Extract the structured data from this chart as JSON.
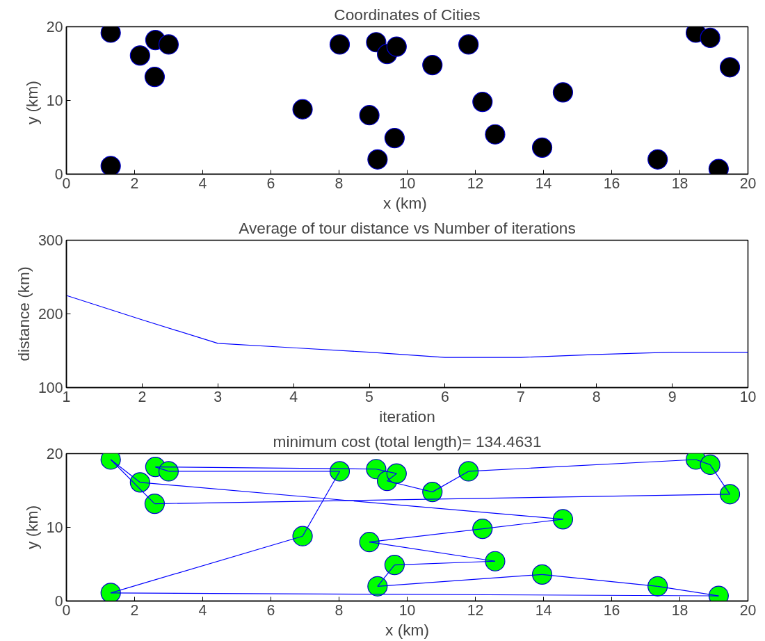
{
  "chart_data": [
    {
      "type": "scatter",
      "title": "Coordinates of Cities",
      "xlabel": "x  (km)",
      "ylabel": "y  (km)",
      "xlim": [
        0,
        20
      ],
      "ylim": [
        0,
        20
      ],
      "xticks": [
        0,
        2,
        4,
        6,
        8,
        10,
        12,
        14,
        16,
        18,
        20
      ],
      "yticks": [
        0,
        10,
        20
      ],
      "marker": "circle",
      "series": [
        {
          "color": "#000000",
          "x": [
            1.3,
            1.3,
            2.16,
            2.61,
            3.0,
            2.59,
            6.93,
            8.02,
            8.89,
            9.09,
            9.13,
            9.41,
            9.69,
            9.63,
            10.74,
            11.8,
            12.21,
            12.58,
            13.96,
            14.57,
            17.35,
            18.47,
            18.89,
            19.14,
            19.47
          ],
          "values": [
            19.2,
            1.1,
            16.1,
            18.2,
            17.6,
            13.2,
            8.8,
            17.6,
            8.0,
            17.9,
            2.0,
            16.3,
            17.3,
            4.9,
            14.8,
            17.6,
            9.8,
            5.4,
            3.6,
            11.1,
            2.0,
            19.2,
            18.5,
            0.7,
            14.5
          ]
        }
      ]
    },
    {
      "type": "line",
      "title": "Average of tour distance vs Number of iterations",
      "xlabel": "iteration",
      "ylabel": "distance (km)",
      "xlim": [
        1,
        10
      ],
      "ylim": [
        100,
        300
      ],
      "xticks": [
        1,
        2,
        3,
        4,
        5,
        6,
        7,
        8,
        9,
        10
      ],
      "yticks": [
        100,
        200,
        300
      ],
      "line_style": "solid",
      "series": [
        {
          "color": "#0000ff",
          "x": [
            1,
            2,
            3,
            4,
            5,
            6,
            7,
            8,
            9,
            10
          ],
          "values": [
            225,
            192,
            160,
            154,
            148,
            141,
            141,
            145,
            148,
            148
          ]
        }
      ]
    },
    {
      "type": "line",
      "title": "minimum cost (total length)= 134.4631",
      "xlabel": "x (km)",
      "ylabel": "y (km)",
      "xlim": [
        0,
        20
      ],
      "ylim": [
        0,
        20
      ],
      "xticks": [
        0,
        2,
        4,
        6,
        8,
        10,
        12,
        14,
        16,
        18,
        20
      ],
      "yticks": [
        0,
        10,
        20
      ],
      "line_style": "solid",
      "series": [
        {
          "type": "line",
          "marker": "none",
          "color": "#0000ff",
          "x": [
            1.3,
            6.93
          ],
          "values": [
            1.1,
            8.8
          ]
        },
        {
          "type": "line",
          "marker": "none",
          "color": "#0000ff",
          "x": [
            6.93,
            8.02
          ],
          "values": [
            8.8,
            17.6
          ]
        },
        {
          "type": "line",
          "marker": "none",
          "color": "#0000ff",
          "x": [
            3.0,
            8.02
          ],
          "values": [
            17.6,
            17.6
          ]
        },
        {
          "type": "line",
          "marker": "none",
          "color": "#0000ff",
          "x": [
            2.61,
            3.0
          ],
          "values": [
            18.2,
            17.6
          ]
        },
        {
          "type": "line",
          "marker": "none",
          "color": "#0000ff",
          "x": [
            2.61,
            9.09
          ],
          "values": [
            18.2,
            17.9
          ]
        },
        {
          "type": "line",
          "marker": "none",
          "color": "#0000ff",
          "x": [
            9.09,
            9.69
          ],
          "values": [
            17.9,
            17.3
          ]
        },
        {
          "type": "line",
          "marker": "none",
          "color": "#0000ff",
          "x": [
            9.41,
            9.69
          ],
          "values": [
            16.3,
            17.3
          ]
        },
        {
          "type": "line",
          "marker": "none",
          "color": "#0000ff",
          "x": [
            9.41,
            10.74
          ],
          "values": [
            16.3,
            14.8
          ]
        },
        {
          "type": "line",
          "marker": "none",
          "color": "#0000ff",
          "x": [
            10.74,
            11.8
          ],
          "values": [
            14.8,
            17.6
          ]
        },
        {
          "type": "line",
          "marker": "none",
          "color": "#0000ff",
          "x": [
            11.8,
            18.47
          ],
          "values": [
            17.6,
            19.2
          ]
        },
        {
          "type": "line",
          "marker": "none",
          "color": "#0000ff",
          "x": [
            18.47,
            18.89
          ],
          "values": [
            19.2,
            18.5
          ]
        },
        {
          "type": "line",
          "marker": "none",
          "color": "#0000ff",
          "x": [
            18.89,
            19.47
          ],
          "values": [
            18.5,
            14.5
          ]
        },
        {
          "type": "line",
          "marker": "none",
          "color": "#0000ff",
          "x": [
            2.59,
            19.47
          ],
          "values": [
            13.2,
            14.5
          ]
        },
        {
          "type": "line",
          "marker": "none",
          "color": "#0000ff",
          "x": [
            1.3,
            2.59
          ],
          "values": [
            19.2,
            13.2
          ]
        },
        {
          "type": "line",
          "marker": "none",
          "color": "#0000ff",
          "x": [
            1.3,
            2.16
          ],
          "values": [
            19.2,
            16.1
          ]
        },
        {
          "type": "line",
          "marker": "none",
          "color": "#0000ff",
          "x": [
            2.16,
            14.57
          ],
          "values": [
            16.1,
            11.1
          ]
        },
        {
          "type": "line",
          "marker": "none",
          "color": "#0000ff",
          "x": [
            12.21,
            14.57
          ],
          "values": [
            9.8,
            11.1
          ]
        },
        {
          "type": "line",
          "marker": "none",
          "color": "#0000ff",
          "x": [
            8.89,
            12.21
          ],
          "values": [
            8.0,
            9.8
          ]
        },
        {
          "type": "line",
          "marker": "none",
          "color": "#0000ff",
          "x": [
            8.89,
            12.58
          ],
          "values": [
            8.0,
            5.4
          ]
        },
        {
          "type": "line",
          "marker": "none",
          "color": "#0000ff",
          "x": [
            9.63,
            12.58
          ],
          "values": [
            4.9,
            5.4
          ]
        },
        {
          "type": "line",
          "marker": "none",
          "color": "#0000ff",
          "x": [
            9.13,
            9.63
          ],
          "values": [
            2.0,
            4.9
          ]
        },
        {
          "type": "line",
          "marker": "none",
          "color": "#0000ff",
          "x": [
            9.13,
            13.96
          ],
          "values": [
            2.0,
            3.6
          ]
        },
        {
          "type": "line",
          "marker": "none",
          "color": "#0000ff",
          "x": [
            13.96,
            17.35
          ],
          "values": [
            3.6,
            2.0
          ]
        },
        {
          "type": "line",
          "marker": "none",
          "color": "#0000ff",
          "x": [
            17.35,
            19.14
          ],
          "values": [
            2.0,
            0.7
          ]
        },
        {
          "type": "line",
          "marker": "none",
          "color": "#0000ff",
          "x": [
            1.3,
            19.14
          ],
          "values": [
            1.1,
            0.7
          ]
        },
        {
          "type": "scatter",
          "marker": "circle",
          "color": "#00ff00",
          "x": [
            1.3,
            1.3,
            2.16,
            2.61,
            3.0,
            2.59,
            6.93,
            8.02,
            8.89,
            9.09,
            9.13,
            9.41,
            9.69,
            9.63,
            10.74,
            11.8,
            12.21,
            12.58,
            13.96,
            14.57,
            17.35,
            18.47,
            18.89,
            19.14,
            19.47
          ],
          "values": [
            19.2,
            1.1,
            16.1,
            18.2,
            17.6,
            13.2,
            8.8,
            17.6,
            8.0,
            17.9,
            2.0,
            16.3,
            17.3,
            4.9,
            14.8,
            17.6,
            9.8,
            5.4,
            3.6,
            11.1,
            2.0,
            19.2,
            18.5,
            0.7,
            14.5
          ]
        }
      ]
    }
  ]
}
